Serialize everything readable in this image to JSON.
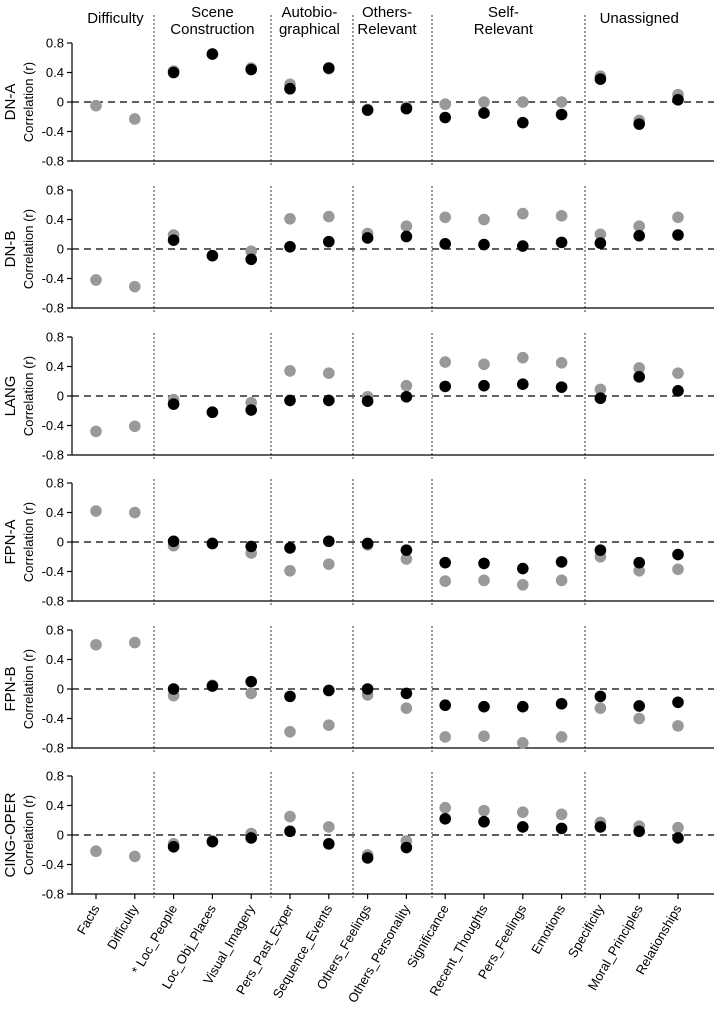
{
  "chart_data": {
    "type": "scatter",
    "group_titles": [
      {
        "lines": [
          "Difficulty"
        ],
        "span": [
          0,
          1
        ]
      },
      {
        "lines": [
          "Scene",
          "Construction"
        ],
        "span": [
          2,
          4
        ]
      },
      {
        "lines": [
          "Autobio-",
          "graphical"
        ],
        "span": [
          5,
          6
        ]
      },
      {
        "lines": [
          "Others-",
          "Relevant"
        ],
        "span": [
          7,
          8
        ]
      },
      {
        "lines": [
          "Self-",
          "Relevant"
        ],
        "span": [
          9,
          12
        ]
      },
      {
        "lines": [
          "Unassigned"
        ],
        "span": [
          13,
          15
        ]
      }
    ],
    "group_dividers_after": [
      1,
      4,
      6,
      8,
      12
    ],
    "categories": [
      "Facts",
      "Difficulty",
      "* Loc_People",
      "Loc_Obj_Places",
      "Visual_Imagery",
      "Pers_Past_Exper",
      "Sequence_Events",
      "Others_Feelings",
      "Others_Personality",
      "Significance",
      "Recent_Thoughts",
      "Pers_Feelings",
      "Emotions",
      "Specificity",
      "Moral_Principles",
      "Relationships"
    ],
    "ylabel": "Correlation (r)",
    "ylim": [
      -0.8,
      0.8
    ],
    "yticks": [
      0.8,
      0.4,
      0,
      -0.4,
      -0.8
    ],
    "ytick_labels": [
      "0.8",
      "0.4",
      "0",
      "-0.4",
      "-0.8"
    ],
    "zero_line": "dashed",
    "series_colors": {
      "gray": "#999999",
      "black": "#000000"
    },
    "panels": [
      {
        "label": "DN-A",
        "gray": [
          -0.05,
          -0.23,
          0.42,
          0.65,
          0.46,
          0.24,
          0.45,
          -0.1,
          -0.07,
          -0.03,
          0.0,
          0.0,
          0.0,
          0.35,
          -0.25,
          0.1
        ],
        "black": [
          null,
          null,
          0.4,
          0.65,
          0.44,
          0.18,
          0.46,
          -0.11,
          -0.09,
          -0.21,
          -0.15,
          -0.28,
          -0.17,
          0.31,
          -0.3,
          0.03
        ]
      },
      {
        "label": "DN-B",
        "gray": [
          -0.42,
          -0.51,
          0.19,
          -0.09,
          -0.03,
          0.41,
          0.44,
          0.21,
          0.31,
          0.43,
          0.4,
          0.48,
          0.45,
          0.2,
          0.31,
          0.43
        ],
        "black": [
          null,
          null,
          0.12,
          -0.09,
          -0.14,
          0.03,
          0.1,
          0.15,
          0.17,
          0.07,
          0.06,
          0.04,
          0.09,
          0.08,
          0.18,
          0.19
        ]
      },
      {
        "label": "LANG",
        "gray": [
          -0.48,
          -0.41,
          -0.05,
          -0.22,
          -0.09,
          0.34,
          0.31,
          -0.01,
          0.14,
          0.46,
          0.43,
          0.52,
          0.45,
          0.09,
          0.38,
          0.31
        ],
        "black": [
          null,
          null,
          -0.11,
          -0.22,
          -0.19,
          -0.06,
          -0.06,
          -0.07,
          -0.01,
          0.13,
          0.14,
          0.16,
          0.12,
          -0.03,
          0.26,
          0.07
        ]
      },
      {
        "label": "FPN-A",
        "gray": [
          0.42,
          0.4,
          -0.05,
          -0.02,
          -0.15,
          -0.39,
          -0.3,
          -0.04,
          -0.23,
          -0.53,
          -0.52,
          -0.58,
          -0.52,
          -0.2,
          -0.39,
          -0.37
        ],
        "black": [
          null,
          null,
          0.01,
          -0.02,
          -0.06,
          -0.08,
          0.01,
          -0.02,
          -0.11,
          -0.28,
          -0.29,
          -0.36,
          -0.27,
          -0.11,
          -0.28,
          -0.17
        ]
      },
      {
        "label": "FPN-B",
        "gray": [
          0.6,
          0.63,
          -0.09,
          0.05,
          -0.06,
          -0.58,
          -0.49,
          -0.08,
          -0.26,
          -0.65,
          -0.64,
          -0.73,
          -0.65,
          -0.26,
          -0.4,
          -0.5
        ],
        "black": [
          null,
          null,
          0.0,
          0.04,
          0.1,
          -0.1,
          -0.02,
          0.0,
          -0.06,
          -0.22,
          -0.24,
          -0.24,
          -0.2,
          -0.1,
          -0.23,
          -0.18
        ]
      },
      {
        "label": "CING-OPER",
        "gray": [
          -0.22,
          -0.29,
          -0.12,
          -0.08,
          0.02,
          0.25,
          0.11,
          -0.27,
          -0.08,
          0.37,
          0.33,
          0.31,
          0.28,
          0.17,
          0.12,
          0.1
        ],
        "black": [
          null,
          null,
          -0.16,
          -0.09,
          -0.04,
          0.05,
          -0.12,
          -0.31,
          -0.17,
          0.22,
          0.18,
          0.11,
          0.09,
          0.11,
          0.05,
          -0.04
        ]
      }
    ]
  }
}
